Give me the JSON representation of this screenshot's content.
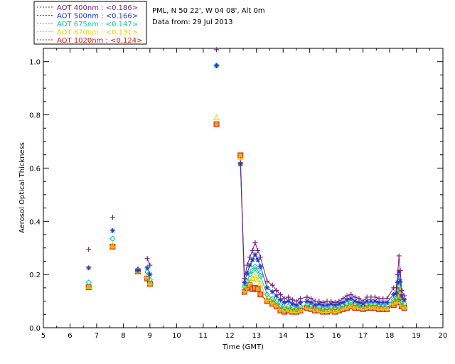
{
  "chart_data": {
    "type": "scatter",
    "info": {
      "site": "PML, N 50 22', W 04 08', Alt 0m",
      "date": "Data from: 29 Jul 2013"
    },
    "xlabel": "Time (GMT)",
    "ylabel": "Aerosol Optical Thickness",
    "xlim": [
      5,
      20
    ],
    "ylim": [
      0,
      1.05
    ],
    "xticks": [
      "5",
      "6",
      "7",
      "8",
      "9",
      "10",
      "11",
      "12",
      "13",
      "14",
      "15",
      "16",
      "17",
      "18",
      "19",
      "20"
    ],
    "yticks": [
      "0.0",
      "0.2",
      "0.4",
      "0.6",
      "0.8",
      "1.0"
    ],
    "legend": {
      "placement": "top-left outside",
      "entries": [
        "AOT  400nm : <0.186>",
        "AOT  500nm : <0.166>",
        "AOT  675nm : <0.147>",
        "AOT  870nm : <0.131>",
        "AOT 1020nm : <0.124>"
      ]
    },
    "x": [
      6.7,
      7.6,
      8.55,
      8.9,
      9.0,
      11.5,
      12.4,
      12.55,
      12.65,
      12.75,
      12.85,
      12.95,
      13.05,
      13.15,
      13.4,
      13.6,
      13.75,
      13.9,
      14.05,
      14.2,
      14.35,
      14.5,
      14.65,
      14.9,
      15.05,
      15.2,
      15.35,
      15.5,
      15.65,
      15.8,
      15.95,
      16.1,
      16.25,
      16.4,
      16.55,
      16.7,
      16.85,
      17.0,
      17.15,
      17.3,
      17.45,
      17.6,
      17.75,
      17.9,
      18.15,
      18.25,
      18.3,
      18.35,
      18.4,
      18.45,
      18.55
    ],
    "series": [
      {
        "name": "AOT  400nm : <0.186>",
        "color": "#7a1f7a",
        "marker": "plus",
        "values": [
          0.295,
          0.415,
          0.22,
          0.26,
          0.235,
          1.045,
          0.62,
          0.185,
          0.235,
          0.265,
          0.29,
          0.32,
          0.29,
          0.265,
          0.175,
          0.16,
          0.14,
          0.125,
          0.11,
          0.115,
          0.105,
          0.1,
          0.11,
          0.115,
          0.11,
          0.1,
          0.1,
          0.095,
          0.1,
          0.1,
          0.095,
          0.1,
          0.11,
          0.12,
          0.125,
          0.115,
          0.11,
          0.1,
          0.115,
          0.115,
          0.115,
          0.11,
          0.11,
          0.11,
          0.15,
          0.15,
          0.2,
          0.27,
          0.215,
          0.14,
          0.12
        ]
      },
      {
        "name": "AOT  500nm : <0.166>",
        "color": "#1e3cc8",
        "marker": "star",
        "values": [
          0.225,
          0.365,
          0.215,
          0.225,
          0.2,
          0.985,
          0.615,
          0.17,
          0.205,
          0.235,
          0.255,
          0.275,
          0.255,
          0.23,
          0.15,
          0.135,
          0.12,
          0.105,
          0.095,
          0.1,
          0.09,
          0.085,
          0.095,
          0.1,
          0.095,
          0.085,
          0.09,
          0.085,
          0.085,
          0.09,
          0.085,
          0.09,
          0.095,
          0.105,
          0.11,
          0.1,
          0.095,
          0.09,
          0.1,
          0.1,
          0.1,
          0.095,
          0.095,
          0.095,
          0.125,
          0.13,
          0.17,
          0.21,
          0.175,
          0.12,
          0.105
        ]
      },
      {
        "name": "AOT  675nm : <0.147>",
        "color": "#00c8a0",
        "marker": "diamond",
        "values": [
          0.17,
          0.335,
          0.22,
          0.21,
          0.18,
          0.985,
          0.615,
          0.155,
          0.175,
          0.2,
          0.215,
          0.23,
          0.215,
          0.195,
          0.125,
          0.11,
          0.1,
          0.085,
          0.075,
          0.08,
          0.075,
          0.07,
          0.08,
          0.085,
          0.08,
          0.075,
          0.075,
          0.07,
          0.075,
          0.075,
          0.075,
          0.075,
          0.085,
          0.09,
          0.095,
          0.09,
          0.085,
          0.08,
          0.085,
          0.09,
          0.09,
          0.085,
          0.085,
          0.085,
          0.105,
          0.11,
          0.14,
          0.175,
          0.145,
          0.1,
          0.09
        ]
      },
      {
        "name": "AOT  870nm : <0.131>",
        "color": "#e8d400",
        "marker": "triangle",
        "values": [
          0.155,
          0.31,
          0.215,
          0.195,
          0.17,
          0.79,
          0.64,
          0.145,
          0.16,
          0.175,
          0.185,
          0.195,
          0.18,
          0.165,
          0.11,
          0.1,
          0.09,
          0.075,
          0.07,
          0.07,
          0.065,
          0.065,
          0.07,
          0.08,
          0.075,
          0.07,
          0.07,
          0.065,
          0.065,
          0.07,
          0.065,
          0.07,
          0.075,
          0.08,
          0.085,
          0.08,
          0.08,
          0.075,
          0.08,
          0.08,
          0.08,
          0.075,
          0.075,
          0.075,
          0.095,
          0.1,
          0.12,
          0.15,
          0.125,
          0.09,
          0.08
        ]
      },
      {
        "name": "AOT 1020nm : <0.124>",
        "color": "#d01818",
        "marker": "square",
        "values": [
          0.152,
          0.305,
          0.212,
          0.185,
          0.165,
          0.765,
          0.648,
          0.135,
          0.15,
          0.16,
          0.145,
          0.15,
          0.145,
          0.125,
          0.1,
          0.09,
          0.08,
          0.065,
          0.06,
          0.065,
          0.06,
          0.06,
          0.065,
          0.075,
          0.07,
          0.065,
          0.065,
          0.06,
          0.06,
          0.065,
          0.06,
          0.065,
          0.07,
          0.075,
          0.08,
          0.075,
          0.075,
          0.07,
          0.075,
          0.075,
          0.075,
          0.07,
          0.07,
          0.07,
          0.085,
          0.095,
          0.11,
          0.135,
          0.115,
          0.08,
          0.075
        ],
        "marker_fill": "#f0a020"
      }
    ]
  }
}
